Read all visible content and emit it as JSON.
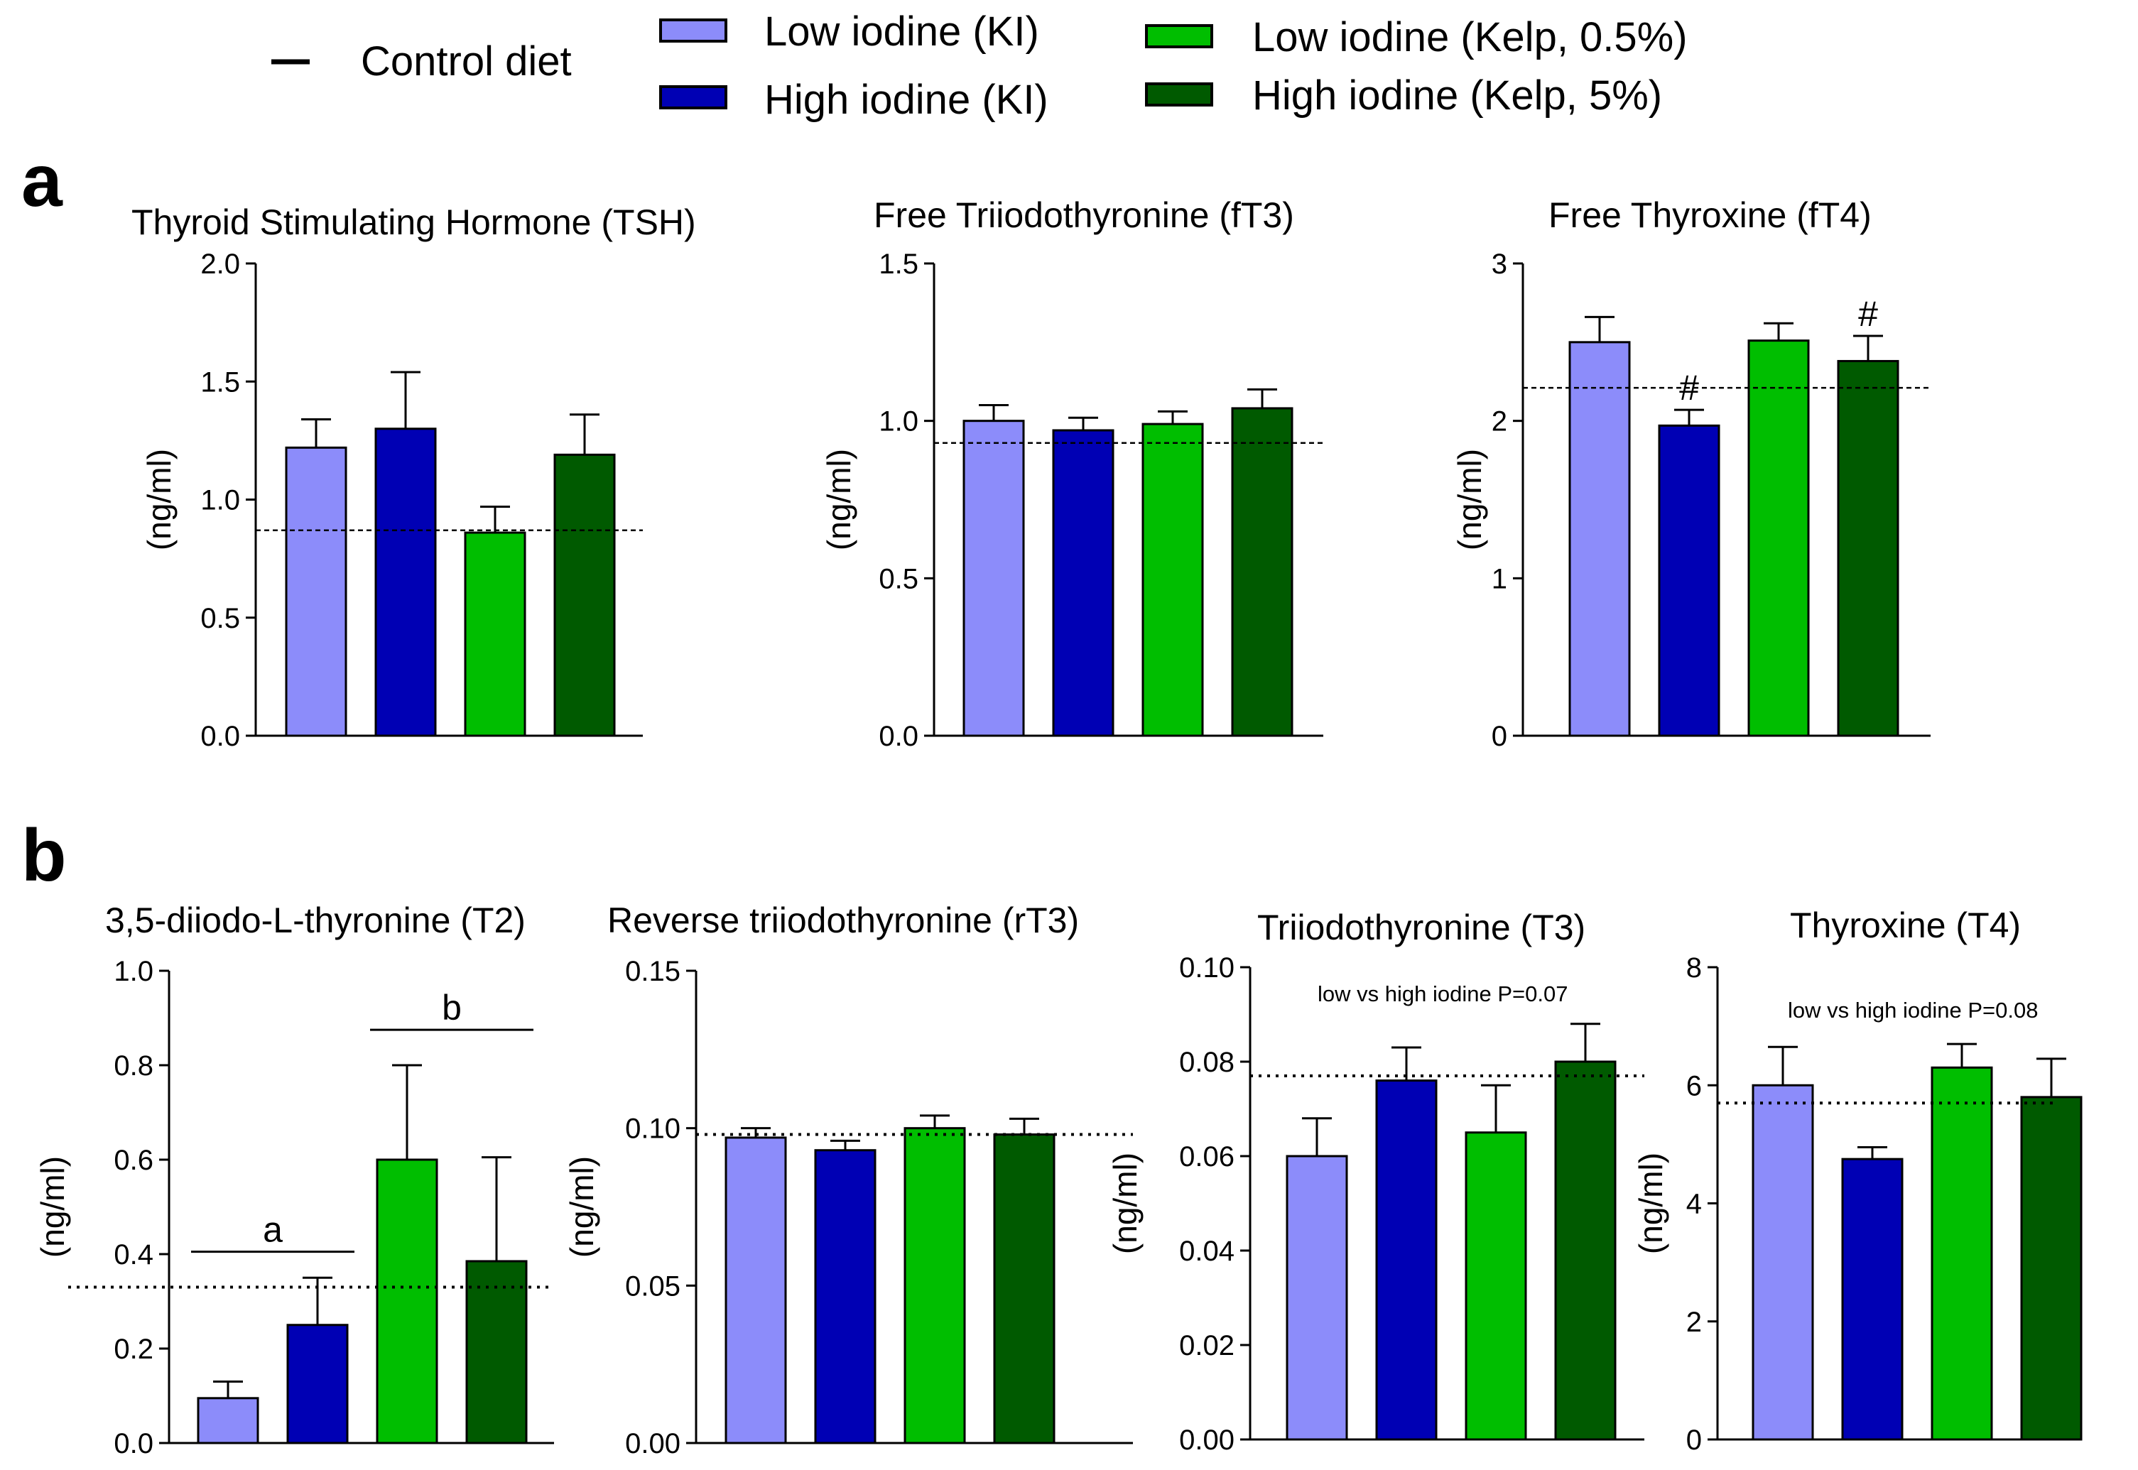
{
  "colors": {
    "low_ki": "#8c8cfa",
    "high_ki": "#0000b4",
    "low_kelp": "#00be00",
    "high_kelp": "#005a00",
    "axis": "#000000"
  },
  "legend": {
    "items": [
      {
        "label": "Control diet",
        "symbol": "line"
      },
      {
        "label": "Low iodine (KI)",
        "color": "#8c8cfa"
      },
      {
        "label": "High iodine (KI)",
        "color": "#0000b4"
      },
      {
        "label": "Low iodine (Kelp, 0.5%)",
        "color": "#00be00"
      },
      {
        "label": "High iodine (Kelp, 5%)",
        "color": "#005a00"
      }
    ]
  },
  "panels": {
    "a": "a",
    "b": "b"
  },
  "chart_data": [
    {
      "type": "bar",
      "panel": "a",
      "title": "Thyroid Stimulating Hormone (TSH)",
      "ylabel": "(ng/ml)",
      "ylim": [
        0,
        2.0
      ],
      "yticks": [
        "0.0",
        "0.5",
        "1.0",
        "1.5",
        "2.0"
      ],
      "categories": [
        "Low iodine (KI)",
        "High iodine (KI)",
        "Low iodine (Kelp, 0.5%)",
        "High iodine (Kelp, 5%)"
      ],
      "values": [
        1.22,
        1.3,
        0.86,
        1.19
      ],
      "errors": [
        0.12,
        0.24,
        0.11,
        0.17
      ],
      "control": 0.87,
      "annotations": []
    },
    {
      "type": "bar",
      "panel": "a",
      "title": "Free Triiodothyronine (fT3)",
      "ylabel": "(ng/ml)",
      "ylim": [
        0,
        1.5
      ],
      "yticks": [
        "0.0",
        "0.5",
        "1.0",
        "1.5"
      ],
      "categories": [
        "Low iodine (KI)",
        "High iodine (KI)",
        "Low iodine (Kelp, 0.5%)",
        "High iodine (Kelp, 5%)"
      ],
      "values": [
        1.0,
        0.97,
        0.99,
        1.04
      ],
      "errors": [
        0.05,
        0.04,
        0.04,
        0.06
      ],
      "control": 0.93,
      "annotations": []
    },
    {
      "type": "bar",
      "panel": "a",
      "title": "Free Thyroxine (fT4)",
      "ylabel": "(ng/ml)",
      "ylim": [
        0,
        3
      ],
      "yticks": [
        "0",
        "1",
        "2",
        "3"
      ],
      "categories": [
        "Low iodine (KI)",
        "High iodine (KI)",
        "Low iodine (Kelp, 0.5%)",
        "High iodine (Kelp, 5%)"
      ],
      "values": [
        2.5,
        1.97,
        2.51,
        2.38
      ],
      "errors": [
        0.16,
        0.1,
        0.11,
        0.16
      ],
      "control": 2.21,
      "annotations": [],
      "bar_marks": [
        "",
        "#",
        "",
        "#"
      ]
    },
    {
      "type": "bar",
      "panel": "b",
      "title": "3,5-diiodo-L-thyronine (T2)",
      "ylabel": "(ng/ml)",
      "ylim": [
        0,
        1.0
      ],
      "yticks": [
        "0.0",
        "0.2",
        "0.4",
        "0.6",
        "0.8",
        "1.0"
      ],
      "categories": [
        "Low iodine (KI)",
        "High iodine (KI)",
        "Low iodine (Kelp, 0.5%)",
        "High iodine (Kelp, 5%)"
      ],
      "values": [
        0.095,
        0.25,
        0.6,
        0.385
      ],
      "errors": [
        0.035,
        0.1,
        0.2,
        0.22
      ],
      "control": 0.33,
      "annotations": [],
      "brackets": [
        {
          "label": "a",
          "from": 0,
          "to": 1,
          "y": 0.405
        },
        {
          "label": "b",
          "from": 2,
          "to": 3,
          "y": 0.875
        }
      ]
    },
    {
      "type": "bar",
      "panel": "b",
      "title": "Reverse triiodothyronine (rT3)",
      "ylabel": "(ng/ml)",
      "ylim": [
        0,
        0.15
      ],
      "yticks": [
        "0.00",
        "0.05",
        "0.10",
        "0.15"
      ],
      "categories": [
        "Low iodine (KI)",
        "High iodine (KI)",
        "Low iodine (Kelp, 0.5%)",
        "High iodine (Kelp, 5%)"
      ],
      "values": [
        0.097,
        0.093,
        0.1,
        0.098
      ],
      "errors": [
        0.003,
        0.003,
        0.004,
        0.005
      ],
      "control": 0.098,
      "annotations": []
    },
    {
      "type": "bar",
      "panel": "b",
      "title": "Triiodothyronine (T3)",
      "ylabel": "(ng/ml)",
      "ylim": [
        0,
        0.1
      ],
      "yticks": [
        "0.00",
        "0.02",
        "0.04",
        "0.06",
        "0.08",
        "0.10"
      ],
      "categories": [
        "Low iodine (KI)",
        "High iodine (KI)",
        "Low iodine (Kelp, 0.5%)",
        "High iodine (Kelp, 5%)"
      ],
      "values": [
        0.06,
        0.076,
        0.065,
        0.08
      ],
      "errors": [
        0.008,
        0.007,
        0.01,
        0.008
      ],
      "control": 0.077,
      "annotations": [
        "low vs high iodine P=0.07"
      ]
    },
    {
      "type": "bar",
      "panel": "b",
      "title": "Thyroxine (T4)",
      "ylabel": "(ng/ml)",
      "ylim": [
        0,
        8
      ],
      "yticks": [
        "0",
        "2",
        "4",
        "6",
        "8"
      ],
      "categories": [
        "Low iodine (KI)",
        "High iodine (KI)",
        "Low iodine (Kelp, 0.5%)",
        "High iodine (Kelp, 5%)"
      ],
      "values": [
        6.0,
        4.75,
        6.3,
        5.8
      ],
      "errors": [
        0.65,
        0.2,
        0.4,
        0.65
      ],
      "control": 5.7,
      "annotations": [
        "low vs high iodine P=0.08"
      ]
    }
  ]
}
